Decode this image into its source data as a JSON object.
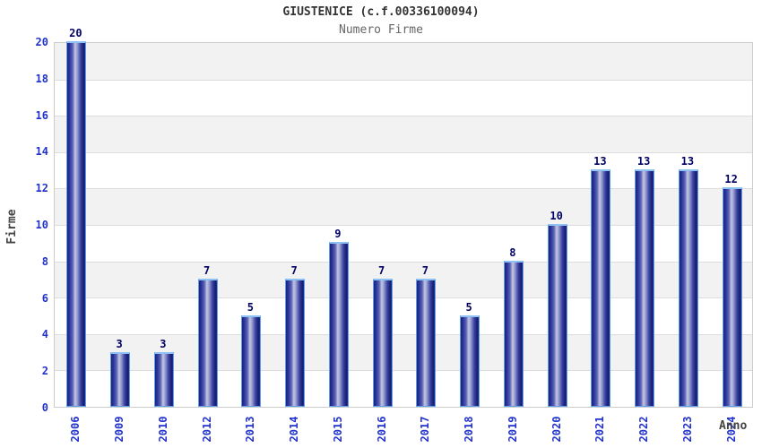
{
  "header": {
    "title": "GIUSTENICE (c.f.00336100094)",
    "subtitle": "Numero Firme"
  },
  "chart_data": {
    "type": "bar",
    "title": "GIUSTENICE (c.f.00336100094)",
    "subtitle": "Numero Firme",
    "xlabel": "Anno",
    "ylabel": "Firme",
    "categories": [
      "2006",
      "2009",
      "2010",
      "2012",
      "2013",
      "2014",
      "2015",
      "2016",
      "2017",
      "2018",
      "2019",
      "2020",
      "2021",
      "2022",
      "2023",
      "2024"
    ],
    "values": [
      20,
      3,
      3,
      7,
      5,
      7,
      9,
      7,
      7,
      5,
      8,
      10,
      13,
      13,
      13,
      12
    ],
    "ylim": [
      0,
      20
    ],
    "ytick_step": 2,
    "grid": "horizontal gridlines every 2 units with alternating gray/white bands",
    "legend": "none",
    "colors": {
      "bar_dark": "#1b2377",
      "bar_light_center": "#c3c7e2",
      "bar_border": "#5e9fe8",
      "bar_top_cap": "#8ec2f5",
      "value_label": "#000066",
      "tick_label": "#2233cc",
      "axis_title": "#444444",
      "band_gray": "#f2f2f2",
      "band_white": "#ffffff",
      "gridline": "#dddddd",
      "plot_border": "#cccccc",
      "title_text": "#333333",
      "subtitle_text": "#666666"
    }
  }
}
